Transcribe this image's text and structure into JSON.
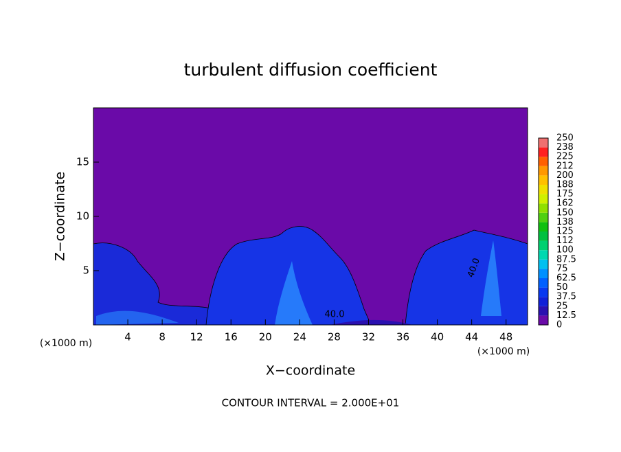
{
  "chart_data": {
    "type": "contour",
    "title": "turbulent diffusion coefficient",
    "xlabel": "X−coordinate",
    "ylabel": "Z−coordinate",
    "x_unit_left": "(×1000 m)",
    "x_unit_right": "(×1000 m)",
    "annotation": "CONTOUR INTERVAL = 2.000E+01",
    "contour_labels": [
      "40.0",
      "40.0"
    ],
    "xlim": [
      0,
      50.5
    ],
    "ylim": [
      0,
      20
    ],
    "xticks": [
      4,
      8,
      12,
      16,
      20,
      24,
      28,
      32,
      36,
      40,
      44,
      48
    ],
    "yticks": [
      5,
      10,
      15
    ],
    "colorbar": {
      "levels": [
        0,
        12.5,
        25,
        37.5,
        50,
        62.5,
        75,
        87.5,
        100,
        112,
        125,
        138,
        150,
        162,
        175,
        188,
        200,
        212,
        225,
        238,
        250
      ],
      "colors": [
        "#6a0aa8",
        "#2a10b0",
        "#1020d8",
        "#0838f0",
        "#0060ff",
        "#0090ff",
        "#00c0f0",
        "#00d8b0",
        "#00d070",
        "#00c040",
        "#10c010",
        "#50d010",
        "#90e000",
        "#d0f000",
        "#f0e000",
        "#ffc000",
        "#ff9800",
        "#ff6000",
        "#ff2020",
        "#f07070"
      ]
    }
  }
}
